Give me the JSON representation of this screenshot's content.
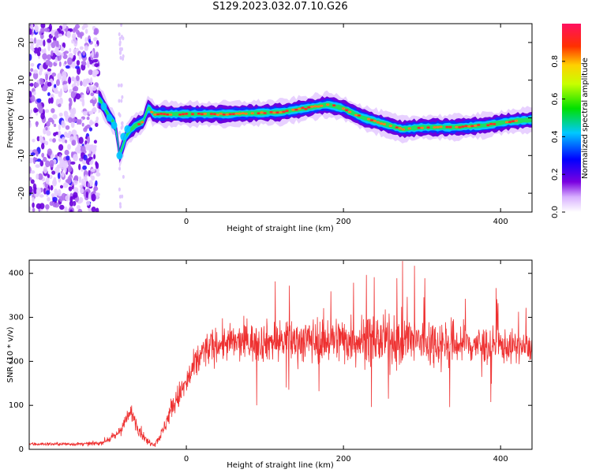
{
  "title": "S129.2023.032.07.10.G26",
  "colors": {
    "line": "#ee3030",
    "axis": "#000000",
    "background": "#ffffff"
  },
  "chart_data": [
    {
      "type": "heatmap",
      "xlabel": "Height of straight line (km)",
      "ylabel": "Frequency (Hz)",
      "xlim": [
        -200,
        440
      ],
      "ylim": [
        -25,
        25
      ],
      "xticks": [
        0,
        200,
        400
      ],
      "yticks": [
        -20,
        -10,
        0,
        10,
        20
      ],
      "colorbar": {
        "label": "Normalized spectral amplitude",
        "range": [
          0,
          1
        ],
        "ticks": [
          "0.0",
          "0.2",
          "0.4",
          "0.6",
          "0.8"
        ],
        "colormap": "rainbow"
      },
      "ridge": {
        "x": [
          -110,
          -100,
          -90,
          -85,
          -75,
          -65,
          -55,
          -48,
          -42,
          -30,
          0,
          50,
          120,
          150,
          180,
          200,
          225,
          250,
          275,
          300,
          340,
          380,
          410,
          440
        ],
        "y": [
          5,
          1,
          -2,
          -10,
          -4,
          -2,
          -1,
          3,
          1,
          1,
          1,
          1,
          1.5,
          2.5,
          3.5,
          2.5,
          0,
          -1.5,
          -3,
          -2.5,
          -2.5,
          -2,
          -1,
          -0.5
        ]
      }
    },
    {
      "type": "line",
      "xlabel": "Height of straight line (km)",
      "ylabel": "SNR (10 * v/v)",
      "xlim": [
        -200,
        440
      ],
      "ylim": [
        0,
        430
      ],
      "xticks": [
        0,
        200,
        400
      ],
      "yticks": [
        0,
        100,
        200,
        300,
        400
      ],
      "series": [
        {
          "color": "#ee3030",
          "envelope_x": [
            -200,
            -130,
            -110,
            -90,
            -80,
            -70,
            -60,
            -50,
            -40,
            -30,
            -20,
            0,
            20,
            40,
            100,
            200,
            300,
            400,
            440
          ],
          "envelope_mean": [
            12,
            12,
            14,
            30,
            55,
            85,
            45,
            18,
            12,
            40,
            90,
            150,
            220,
            240,
            245,
            250,
            245,
            235,
            230
          ],
          "envelope_spread": [
            4,
            4,
            5,
            10,
            15,
            20,
            15,
            8,
            6,
            15,
            25,
            35,
            40,
            40,
            45,
            55,
            60,
            40,
            30
          ]
        }
      ]
    }
  ]
}
